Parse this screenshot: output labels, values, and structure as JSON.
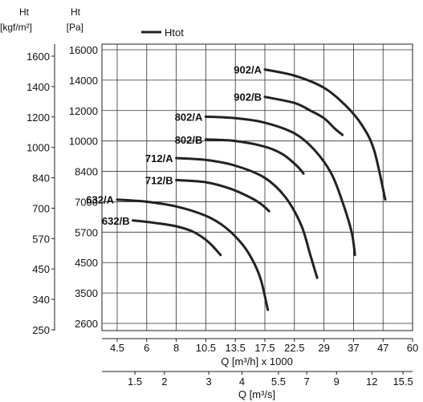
{
  "chart_data": {
    "type": "line",
    "legend": {
      "label": "Htot",
      "placement": "top-left"
    },
    "left_axes": [
      {
        "unit_top": "Ht",
        "unit_bottom": "[kgf/m²]",
        "ticks": [
          "1600",
          "1400",
          "1200",
          "1000",
          "840",
          "700",
          "570",
          "450",
          "340",
          "250"
        ]
      },
      {
        "unit_top": "Ht",
        "unit_bottom": "[Pa]",
        "ticks": [
          "16000",
          "14000",
          "12000",
          "10000",
          "8400",
          "7000",
          "5700",
          "4500",
          "3500",
          "2600"
        ]
      }
    ],
    "x_axis_flow_h": {
      "label": "Q [m³/h] x 1000",
      "ticks": [
        "4.5",
        "6",
        "8",
        "10.5",
        "13.5",
        "17.5",
        "22.5",
        "29",
        "37",
        "47",
        "60"
      ]
    },
    "x_axis_flow_s": {
      "label": "Q [m³/s]",
      "ticks": [
        "1.5",
        "2",
        "3",
        "4",
        "5.5",
        "7",
        "9",
        "12",
        "15.5"
      ],
      "tick_positions_m3h": [
        5.4,
        7.2,
        10.8,
        14.4,
        19.8,
        25.2,
        32.4,
        43.2,
        55.8
      ]
    },
    "grid": true,
    "series": [
      {
        "name": "902/A",
        "x": [
          17.5,
          22.5,
          29,
          35,
          40,
          44,
          48
        ],
        "y": [
          14700,
          14300,
          13500,
          12300,
          11000,
          9500,
          7100
        ]
      },
      {
        "name": "902/B",
        "x": [
          17.5,
          22.5,
          26,
          29,
          32,
          34
        ],
        "y": [
          12900,
          12500,
          12000,
          11500,
          10800,
          10400
        ]
      },
      {
        "name": "802/A",
        "x": [
          10.5,
          13.5,
          17.5,
          22.5,
          27,
          31,
          34,
          36.5,
          37.5
        ],
        "y": [
          11600,
          11500,
          11200,
          10500,
          9500,
          8300,
          7000,
          5700,
          4800
        ]
      },
      {
        "name": "802/B",
        "x": [
          10.5,
          13.5,
          17.5,
          20.5,
          23,
          24.5
        ],
        "y": [
          10100,
          10000,
          9700,
          9300,
          8700,
          8300
        ]
      },
      {
        "name": "712/A",
        "x": [
          8.0,
          10.5,
          13.5,
          17.5,
          21,
          24,
          26,
          27.5
        ],
        "y": [
          9100,
          9000,
          8700,
          8100,
          7200,
          6000,
          4800,
          4000
        ]
      },
      {
        "name": "712/B",
        "x": [
          8.0,
          10.5,
          13,
          15.5,
          17,
          18.2
        ],
        "y": [
          8000,
          7900,
          7600,
          7200,
          6900,
          6600
        ]
      },
      {
        "name": "632/A",
        "x": [
          4.5,
          6,
          8,
          10.5,
          12.5,
          14.5,
          16,
          17,
          18
        ],
        "y": [
          7100,
          7000,
          6800,
          6400,
          5900,
          5200,
          4500,
          3900,
          3000
        ]
      },
      {
        "name": "632/B",
        "x": [
          5.3,
          6.5,
          8,
          9.5,
          10.8,
          12
        ],
        "y": [
          6200,
          6100,
          5950,
          5700,
          5300,
          4800
        ]
      }
    ]
  }
}
